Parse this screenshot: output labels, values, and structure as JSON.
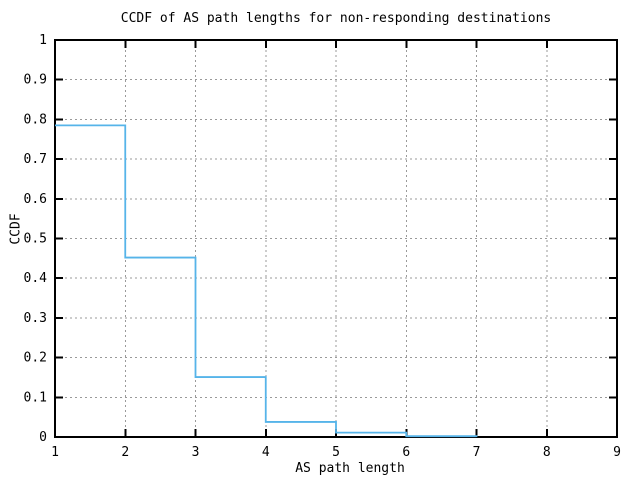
{
  "chart_data": {
    "type": "line",
    "subtype": "step-ccdf",
    "title": "CCDF of AS path lengths for non-responding destinations",
    "xlabel": "AS path length",
    "ylabel": "CCDF",
    "xlim": [
      1,
      9
    ],
    "ylim": [
      0,
      1
    ],
    "x_ticks": [
      1,
      2,
      3,
      4,
      5,
      6,
      7,
      8,
      9
    ],
    "y_ticks": [
      0,
      0.1,
      0.2,
      0.3,
      0.4,
      0.5,
      0.6,
      0.7,
      0.8,
      0.9,
      1
    ],
    "grid": true,
    "legend": "none",
    "line_color": "#56b4e9",
    "grid_color": "#9a9a9a",
    "axis_color": "#000000",
    "steps": [
      {
        "x_start": 1,
        "x_end": 2,
        "y": 0.785
      },
      {
        "x_start": 2,
        "x_end": 3,
        "y": 0.452
      },
      {
        "x_start": 3,
        "x_end": 4,
        "y": 0.151
      },
      {
        "x_start": 4,
        "x_end": 5,
        "y": 0.038
      },
      {
        "x_start": 5,
        "x_end": 6,
        "y": 0.011
      },
      {
        "x_start": 6,
        "x_end": 7,
        "y": 0.002
      }
    ],
    "end_value": 0
  }
}
